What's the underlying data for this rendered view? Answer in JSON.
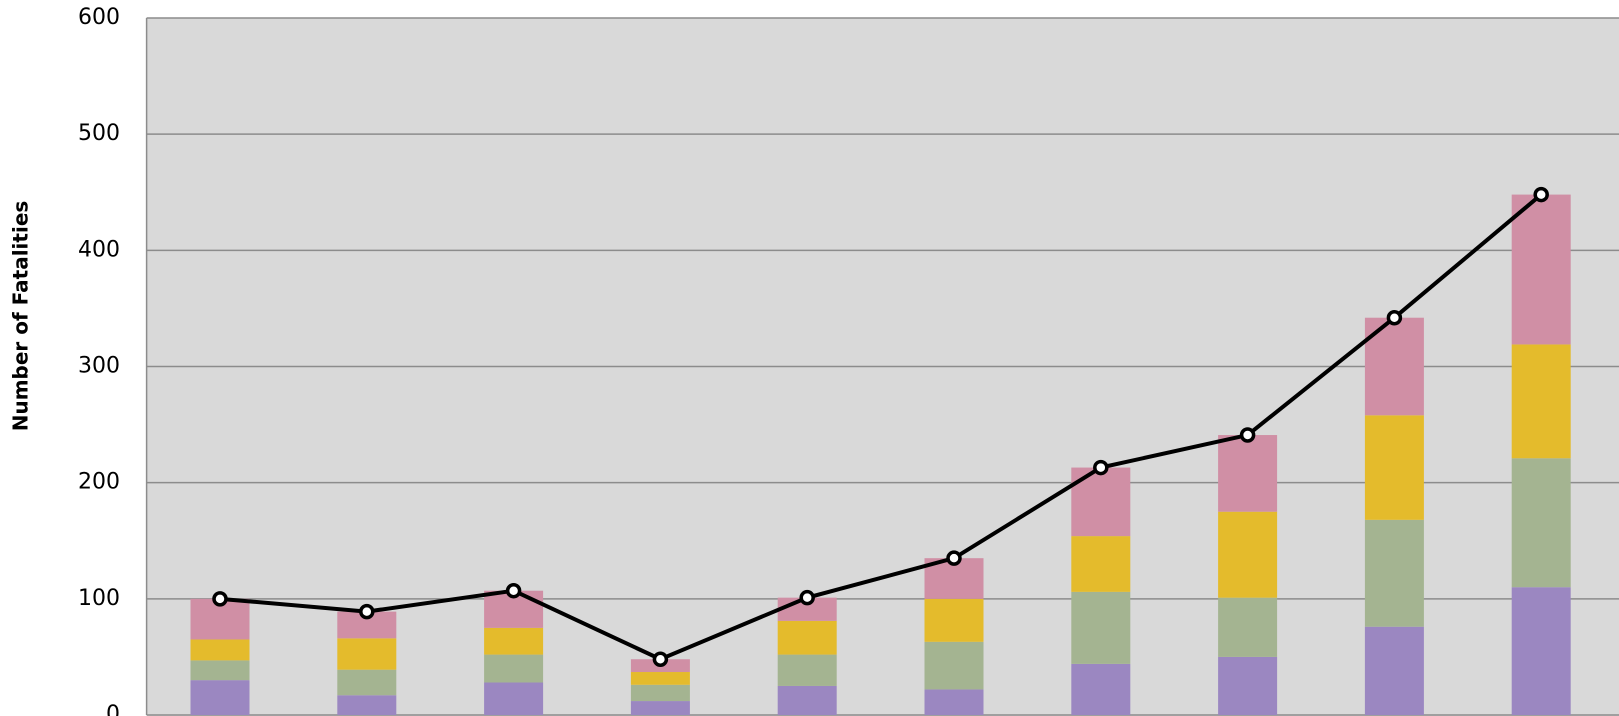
{
  "chart_data": {
    "type": "bar",
    "stacked": true,
    "y_label": "Number of Fatalities",
    "categories": [
      null,
      null,
      null,
      null,
      null,
      null,
      null,
      null,
      null,
      null
    ],
    "series": [
      {
        "color": "#9b87c1",
        "values": [
          30,
          17,
          28,
          12,
          25,
          22,
          44,
          50,
          76,
          110
        ]
      },
      {
        "color": "#a4b491",
        "values": [
          17,
          22,
          24,
          14,
          27,
          41,
          62,
          51,
          92,
          111
        ]
      },
      {
        "color": "#e4bb2c",
        "values": [
          18,
          27,
          23,
          11,
          29,
          37,
          48,
          74,
          90,
          98
        ]
      },
      {
        "color": "#d08fa5",
        "values": [
          35,
          23,
          32,
          11,
          20,
          35,
          59,
          66,
          84,
          129
        ]
      },
      {
        "type": "line",
        "color": "#000000",
        "values": [
          100,
          89,
          107,
          48,
          101,
          135,
          213,
          241,
          342,
          448
        ]
      }
    ],
    "ylim": [
      0,
      600
    ],
    "yticks": [
      0,
      100,
      200,
      300,
      400,
      500,
      600
    ],
    "grid": true
  }
}
